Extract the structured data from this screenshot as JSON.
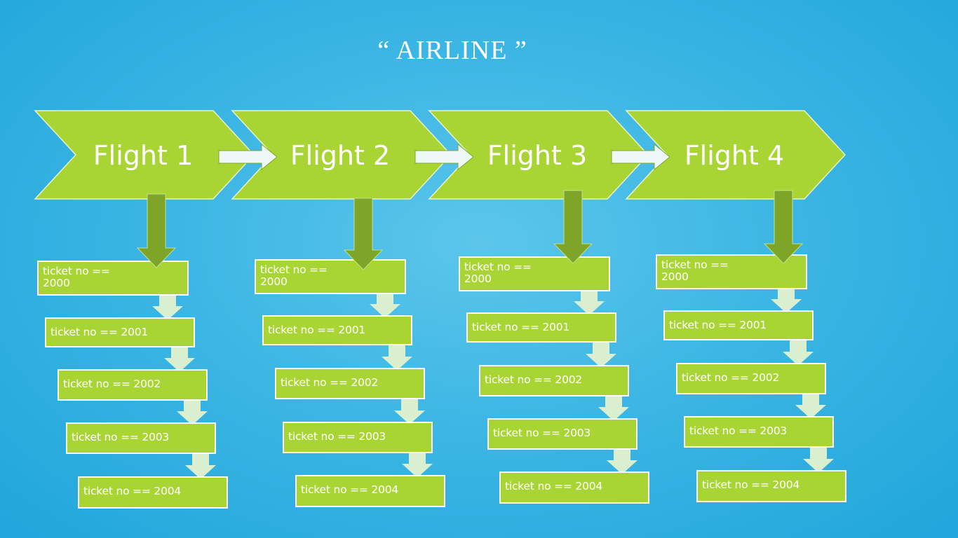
{
  "title": "“ AIRLINE ”",
  "colors": {
    "background": "#2aaee0",
    "chevron": "#a9d534",
    "chevron_border": "#e8f4c8",
    "down_arrow": "#7ea428",
    "connector_arrow": "#eef8f6",
    "small_arrow": "#d9efcf",
    "text": "#ffffff"
  },
  "flights": [
    {
      "label": "Flight  1",
      "tickets": [
        "ticket no == 2000",
        "ticket no == 2001",
        "ticket no == 2002",
        "ticket no == 2003",
        "ticket no == 2004"
      ]
    },
    {
      "label": "Flight  2",
      "tickets": [
        "ticket no == 2000",
        "ticket no == 2001",
        "ticket no == 2002",
        "ticket no == 2003",
        "ticket no == 2004"
      ]
    },
    {
      "label": "Flight  3",
      "tickets": [
        "ticket no == 2000",
        "ticket no == 2001",
        "ticket no == 2002",
        "ticket no == 2003",
        "ticket no == 2004"
      ]
    },
    {
      "label": "Flight  4",
      "tickets": [
        "ticket no == 2000",
        "ticket no == 2001",
        "ticket no == 2002",
        "ticket no == 2003",
        "ticket no == 2004"
      ]
    }
  ]
}
